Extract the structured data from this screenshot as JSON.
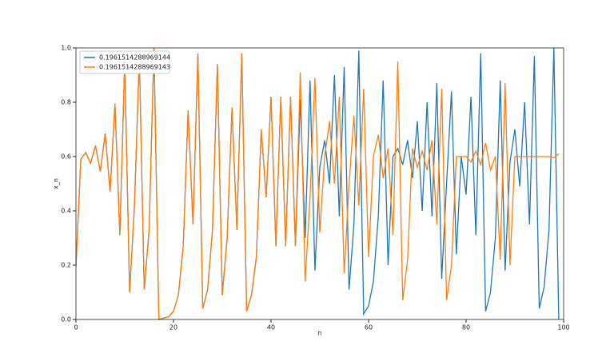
{
  "chart_data": {
    "type": "line",
    "xlabel": "n",
    "ylabel": "x_n",
    "x": [
      0,
      1,
      2,
      3,
      4,
      5,
      6,
      7,
      8,
      9,
      10,
      11,
      12,
      13,
      14,
      15,
      16,
      17,
      18,
      19,
      20,
      21,
      22,
      23,
      24,
      25,
      26,
      27,
      28,
      29,
      30,
      31,
      32,
      33,
      34,
      35,
      36,
      37,
      38,
      39,
      40,
      41,
      42,
      43,
      44,
      45,
      46,
      47,
      48,
      49,
      50,
      51,
      52,
      53,
      54,
      55,
      56,
      57,
      58,
      59,
      60,
      61,
      62,
      63,
      64,
      65,
      66,
      67,
      68,
      69,
      70,
      71,
      72,
      73,
      74,
      75,
      76,
      77,
      78,
      79,
      80,
      81,
      82,
      83,
      84,
      85,
      86,
      87,
      88,
      89,
      90,
      91,
      92,
      93,
      94,
      95,
      96,
      97,
      98,
      99
    ],
    "series": [
      {
        "name": "0.1961514288969144",
        "color": "#1f77b4",
        "values": [
          0.196,
          0.59,
          0.615,
          0.575,
          0.64,
          0.545,
          0.685,
          0.47,
          0.795,
          0.31,
          0.95,
          0.1,
          0.42,
          0.97,
          0.11,
          0.33,
          1.0,
          0.0,
          0.005,
          0.01,
          0.03,
          0.09,
          0.27,
          0.77,
          0.35,
          0.98,
          0.04,
          0.11,
          0.33,
          0.94,
          0.09,
          0.3,
          0.78,
          0.33,
          0.98,
          0.03,
          0.09,
          0.23,
          0.7,
          0.45,
          0.82,
          0.27,
          0.82,
          0.27,
          0.82,
          0.27,
          0.81,
          0.3,
          0.88,
          0.18,
          0.56,
          0.66,
          0.5,
          0.9,
          0.38,
          0.93,
          0.11,
          0.35,
          0.99,
          0.02,
          0.05,
          0.14,
          0.38,
          0.88,
          0.2,
          0.6,
          0.63,
          0.57,
          0.66,
          0.52,
          0.73,
          0.4,
          0.8,
          0.38,
          0.87,
          0.15,
          0.5,
          0.84,
          0.24,
          0.6,
          0.46,
          0.82,
          0.31,
          0.98,
          0.03,
          0.1,
          0.3,
          0.88,
          0.18,
          0.58,
          0.7,
          0.49,
          0.8,
          0.35,
          0.97,
          0.04,
          0.12,
          0.33,
          1.0,
          0.0
        ]
      },
      {
        "name": "0.1961514288969143",
        "color": "#ff7f0e",
        "values": [
          0.196,
          0.59,
          0.615,
          0.575,
          0.64,
          0.545,
          0.685,
          0.47,
          0.795,
          0.31,
          0.95,
          0.1,
          0.42,
          0.97,
          0.11,
          0.33,
          1.0,
          0.0,
          0.005,
          0.01,
          0.03,
          0.09,
          0.27,
          0.77,
          0.35,
          0.98,
          0.04,
          0.11,
          0.33,
          0.94,
          0.09,
          0.3,
          0.78,
          0.33,
          0.98,
          0.03,
          0.09,
          0.23,
          0.7,
          0.45,
          0.82,
          0.27,
          0.82,
          0.27,
          0.82,
          0.27,
          0.91,
          0.14,
          0.45,
          0.89,
          0.32,
          0.6,
          0.73,
          0.5,
          0.82,
          0.17,
          0.5,
          0.75,
          0.42,
          0.85,
          0.23,
          0.6,
          0.68,
          0.52,
          0.63,
          0.31,
          0.95,
          0.07,
          0.22,
          0.63,
          0.56,
          0.62,
          0.55,
          0.66,
          0.35,
          0.85,
          0.07,
          0.2,
          0.6,
          0.6,
          0.6,
          0.58,
          0.62,
          0.57,
          0.65,
          0.55,
          0.6,
          0.22,
          0.87,
          0.2,
          0.6,
          0.6,
          0.6,
          0.6,
          0.6,
          0.6,
          0.6,
          0.6,
          0.595,
          0.61
        ]
      }
    ],
    "xlim": [
      0,
      100
    ],
    "xticks": [
      0,
      20,
      40,
      60,
      80,
      100
    ],
    "ylim": [
      0,
      1
    ],
    "yticks": [
      {
        "value": 0,
        "label": "0.0"
      },
      {
        "value": 0.2,
        "label": "0.2"
      },
      {
        "value": 0.4,
        "label": "0.4"
      },
      {
        "value": 0.6,
        "label": "0.6"
      },
      {
        "value": 0.8,
        "label": "0.8"
      },
      {
        "value": 1,
        "label": "1.0"
      }
    ],
    "legend": "upper left"
  }
}
